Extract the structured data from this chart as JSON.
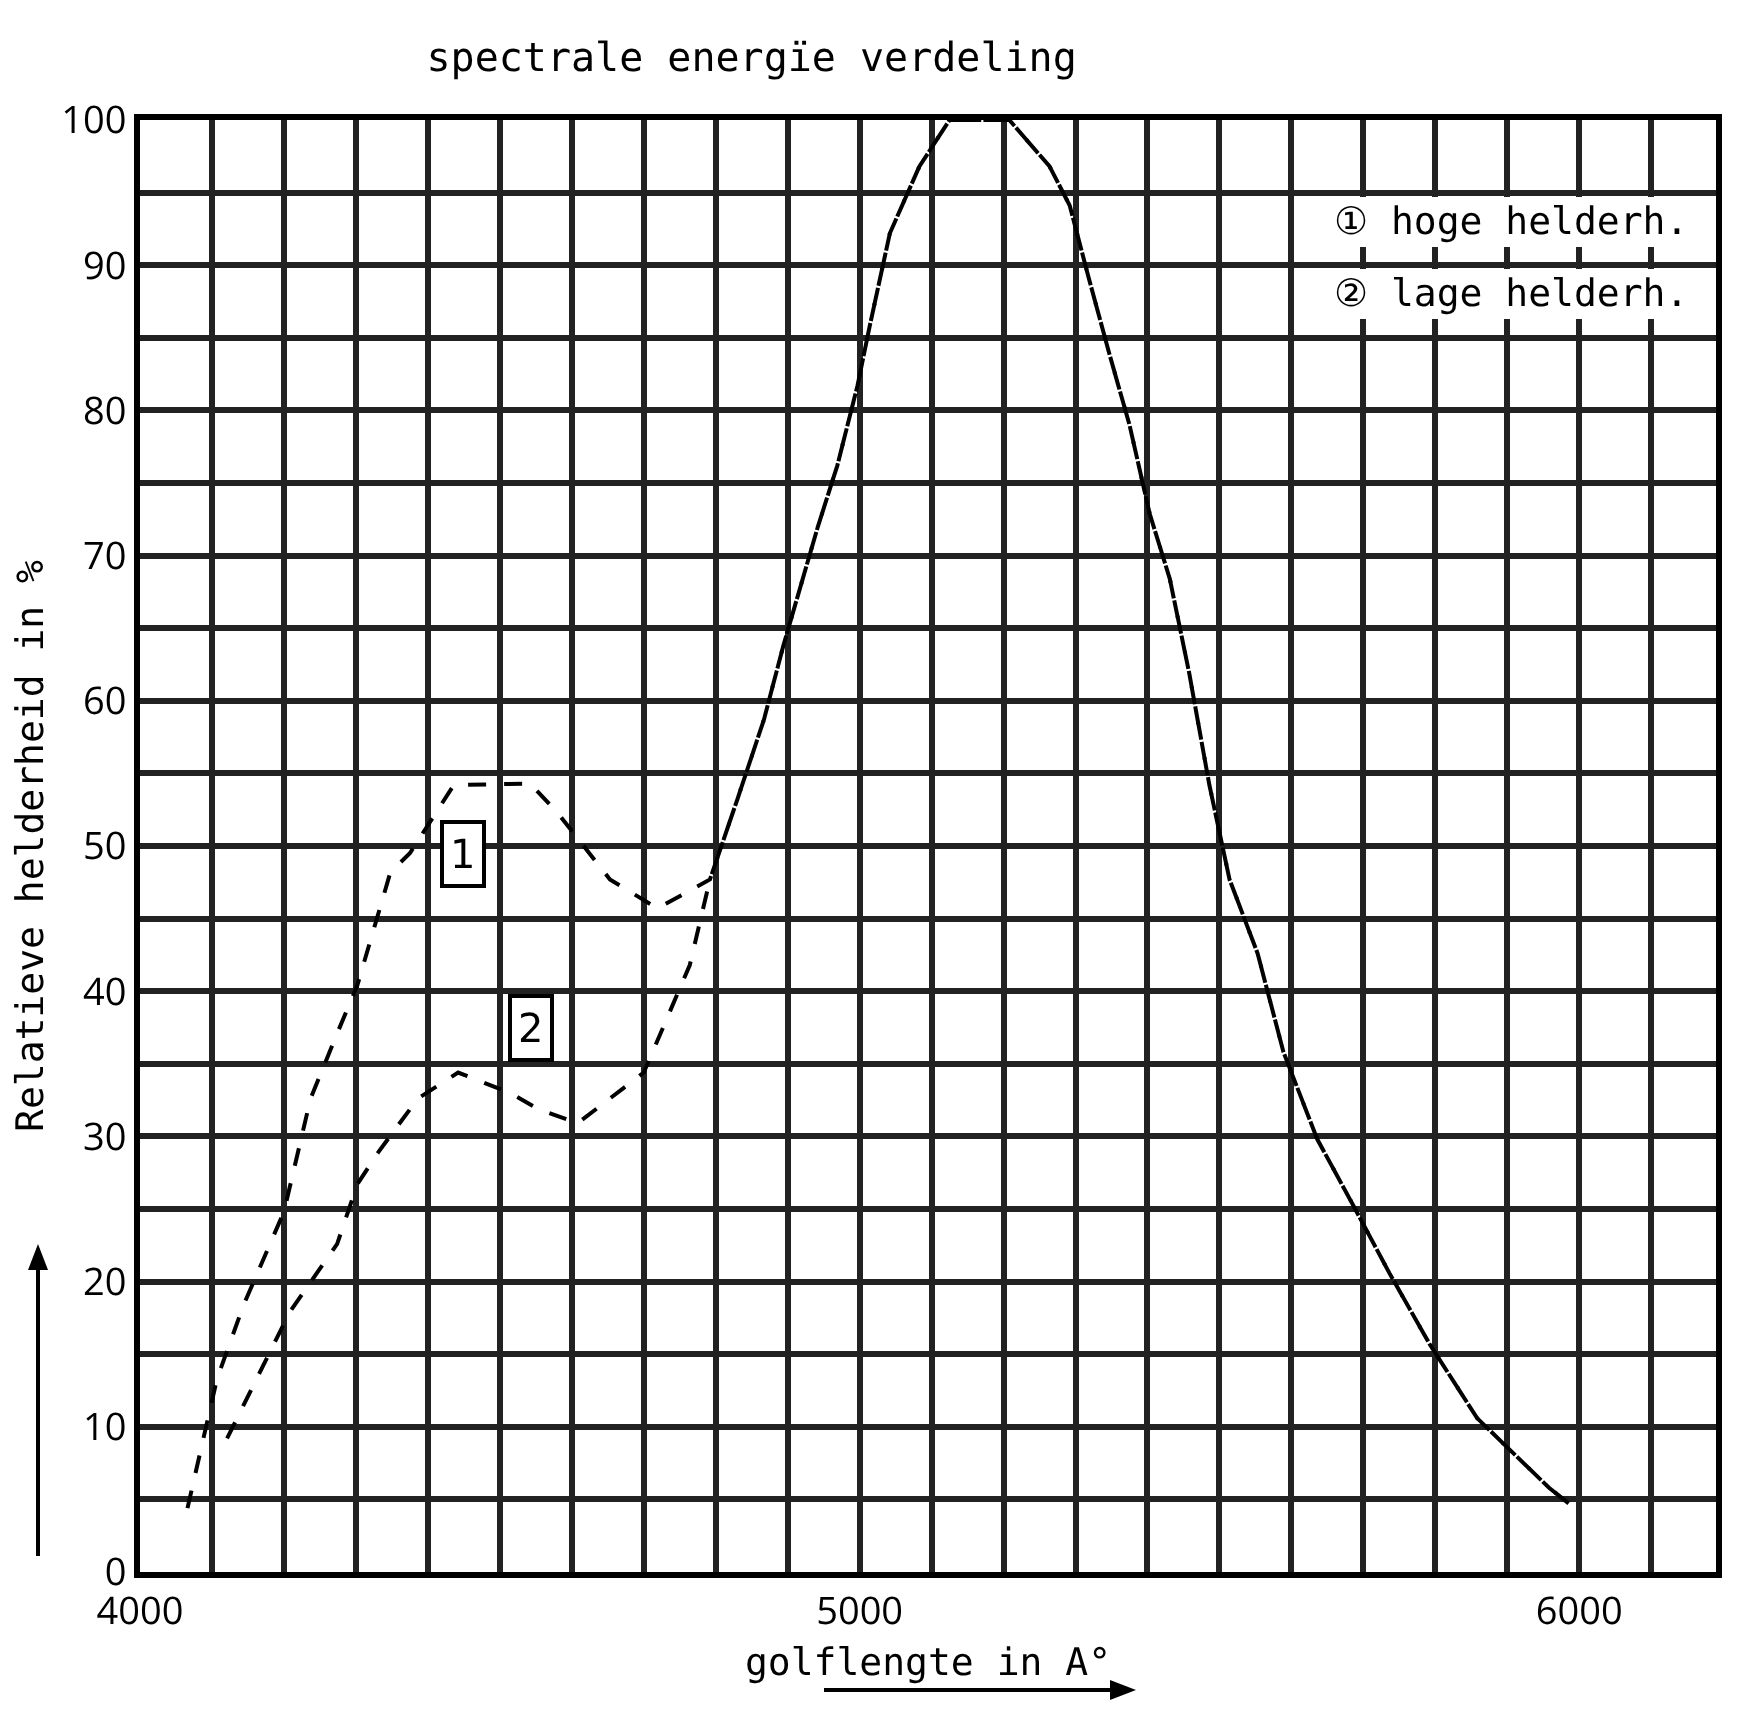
{
  "chart_data": {
    "type": "line",
    "title": "spectrale energïe verdeling",
    "xlabel": "golflengte in A°",
    "ylabel": "Relatieve helderheid in %",
    "series": [
      {
        "color": "#000000",
        "x": [
          4066,
          4107,
          4144,
          4200,
          4237,
          4274,
          4302,
          4348,
          4375,
          4436,
          4542,
          4580,
          4653,
          4719,
          4792,
          4830,
          4867,
          4894,
          4942,
          4969,
          4997,
          5014,
          5042,
          5083,
          5125,
          5208,
          5264,
          5292,
          5319,
          5347,
          5375,
          5403,
          5431,
          5458,
          5486,
          5514,
          5553,
          5589,
          5636,
          5681,
          5736,
          5792,
          5858,
          5958,
          5986
        ],
        "values": [
          4.4,
          13.3,
          18.4,
          24.8,
          32.6,
          37.1,
          40.4,
          48.2,
          49.5,
          54.2,
          54.3,
          52.3,
          47.7,
          45.7,
          47.7,
          53.2,
          58.7,
          63.8,
          72,
          76.2,
          81.7,
          85.8,
          92.2,
          96.8,
          100,
          100,
          96.8,
          94.1,
          89,
          83.9,
          79,
          72.9,
          68.4,
          61.9,
          54.2,
          47.7,
          42.6,
          35.8,
          29.8,
          25.7,
          20.6,
          15.7,
          10.6,
          5.8,
          4.7
        ]
      },
      {
        "color": "#000000",
        "x": [
          4121,
          4172,
          4208,
          4274,
          4302,
          4331,
          4386,
          4442,
          4514,
          4553,
          4608,
          4700,
          4764,
          4792,
          4830,
          4867,
          4894,
          4942,
          4969,
          4997,
          5014,
          5042,
          5083,
          5125,
          5208,
          5264,
          5292,
          5319,
          5347,
          5375,
          5403,
          5431,
          5458,
          5486,
          5514,
          5553,
          5589,
          5636,
          5681,
          5736,
          5792,
          5858,
          5958,
          5986
        ],
        "values": [
          9.2,
          14.3,
          17.9,
          22.6,
          26.7,
          28.9,
          32.6,
          34.4,
          33,
          31.9,
          30.9,
          34.4,
          41.8,
          47.7,
          53.2,
          58.7,
          63.8,
          72,
          76.2,
          81.7,
          85.8,
          92.2,
          96.8,
          100,
          100,
          96.8,
          94.1,
          89,
          83.9,
          79,
          72.9,
          68.4,
          61.9,
          54.2,
          47.7,
          42.6,
          35.8,
          29.8,
          25.7,
          20.6,
          15.7,
          10.6,
          5.8,
          4.7
        ]
      }
    ],
    "annotations": [
      {
        "text": "1",
        "x": 4450,
        "y": 49.5
      },
      {
        "text": "2",
        "x": 4542,
        "y": 37.5
      },
      "① hoge helderh.",
      "② lage helderh."
    ],
    "xlim": [
      4000,
      6190
    ],
    "xticks": [
      4000,
      {
        "value": 4100,
        "label": null
      },
      {
        "value": 4200,
        "label": null
      },
      {
        "value": 4300,
        "label": null
      },
      {
        "value": 4400,
        "label": null
      },
      {
        "value": 4500,
        "label": null
      },
      {
        "value": 4600,
        "label": null
      },
      {
        "value": 4700,
        "label": null
      },
      {
        "value": 4800,
        "label": null
      },
      {
        "value": 4900,
        "label": null
      },
      5000,
      {
        "value": 5100,
        "label": null
      },
      {
        "value": 5200,
        "label": null
      },
      {
        "value": 5300,
        "label": null
      },
      {
        "value": 5400,
        "label": null
      },
      {
        "value": 5500,
        "label": null
      },
      {
        "value": 5600,
        "label": null
      },
      {
        "value": 5700,
        "label": null
      },
      {
        "value": 5800,
        "label": null
      },
      {
        "value": 5900,
        "label": null
      },
      6000,
      {
        "value": 6100,
        "label": null
      }
    ],
    "ylim": [
      0,
      100
    ],
    "yticks": [
      0,
      {
        "value": 5,
        "label": null
      },
      10,
      {
        "value": 15,
        "label": null
      },
      20,
      {
        "value": 25,
        "label": null
      },
      30,
      {
        "value": 35,
        "label": null
      },
      40,
      {
        "value": 45,
        "label": null
      },
      50,
      {
        "value": 55,
        "label": null
      },
      60,
      {
        "value": 65,
        "label": null
      },
      70,
      {
        "value": 75,
        "label": null
      },
      80,
      {
        "value": 85,
        "label": null
      },
      90,
      {
        "value": 95,
        "label": null
      },
      100
    ],
    "grid": true,
    "marker": "none",
    "line_style": "dashed"
  }
}
